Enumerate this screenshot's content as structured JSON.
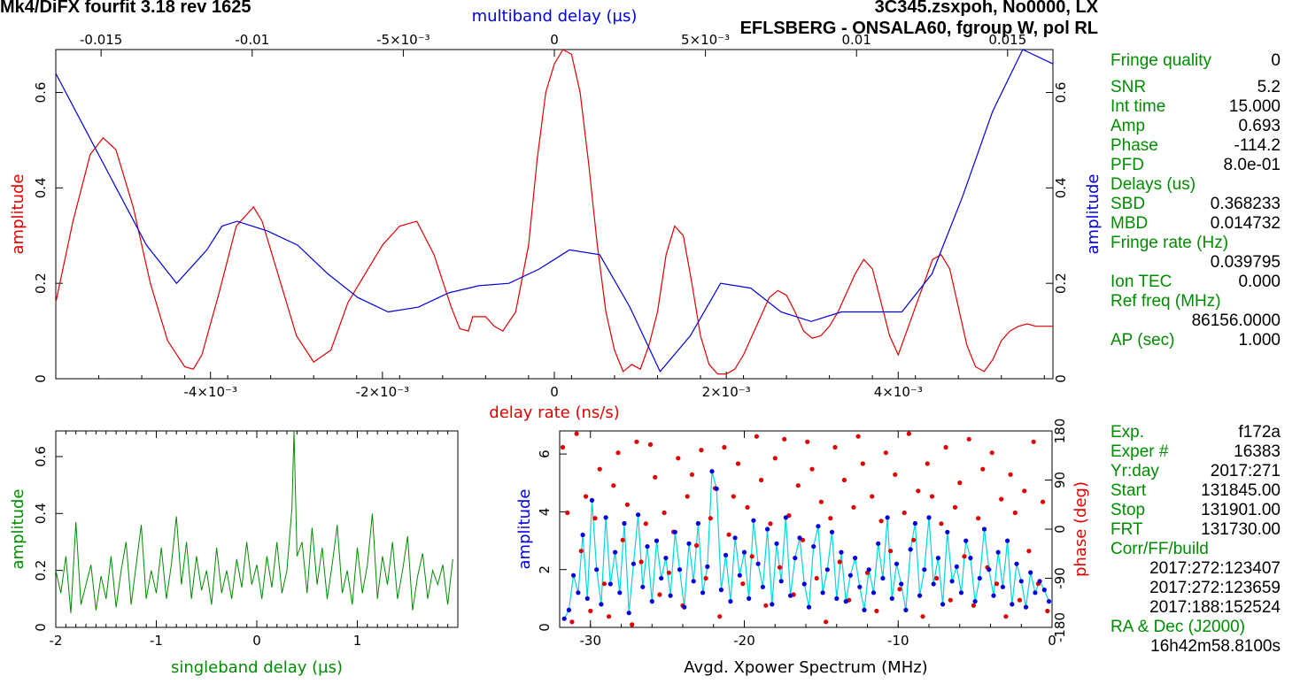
{
  "header": {
    "left_title": "Mk4/DiFX fourfit 3.18 rev 1625",
    "right_title": "3C345.zsxpoh, No0000, LX",
    "baseline": "EFLSBERG - ONSALA60, fgroup W, pol RL"
  },
  "colors": {
    "red": "#e00000",
    "blue": "#0000dd",
    "green": "#008c00",
    "cyan": "#00d8e0"
  },
  "side_panel": {
    "fringe_quality_label": "Fringe quality",
    "fringe_quality_value": "0",
    "snr_label": "SNR",
    "snr_value": "5.2",
    "int_time_label": "Int time",
    "int_time_value": "15.000",
    "amp_label": "Amp",
    "amp_value": "0.693",
    "phase_label": "Phase",
    "phase_value": "-114.2",
    "pfd_label": "PFD",
    "pfd_value": "8.0e-01",
    "delays_label": "Delays (us)",
    "sbd_label": "SBD",
    "sbd_value": "0.368233",
    "mbd_label": "MBD",
    "mbd_value": "0.014732",
    "fringe_rate_label": "Fringe rate (Hz)",
    "fringe_rate_value": "0.039795",
    "ion_tec_label": "Ion TEC",
    "ion_tec_value": "0.000",
    "ref_freq_label": "Ref freq (MHz)",
    "ref_freq_value": "86156.0000",
    "ap_label": "AP (sec)",
    "ap_value": "1.000",
    "exp_label": "Exp.",
    "exp_value": "f172a",
    "exper_label": "Exper #",
    "exper_value": "16383",
    "yrday_label": "Yr:day",
    "yrday_value": "2017:271",
    "start_label": "Start",
    "start_value": "131845.00",
    "stop_label": "Stop",
    "stop_value": "131901.00",
    "frt_label": "FRT",
    "frt_value": "131730.00",
    "corr_label": "Corr/FF/build",
    "corr_time1": "2017:272:123407",
    "corr_time2": "2017:272:123659",
    "corr_time3": "2017:188:152524",
    "radec_label": "RA & Dec (J2000)",
    "ra_value": "16h42m58.8100s"
  },
  "chart_data": [
    {
      "type": "line",
      "title": "",
      "xlabel_bottom": "delay rate (ns/s)",
      "xlabel_top": "multiband delay (µs)",
      "ylabel_left": "amplitude",
      "ylabel_right": "amplitude",
      "xlim_bottom": [
        -0.0058,
        0.0058
      ],
      "xlim_top": [
        -0.0165,
        0.0165
      ],
      "ylim": [
        0,
        0.69
      ],
      "bottom_ticks": [
        "-4×10⁻³",
        "-2×10⁻³",
        "0",
        "2×10⁻³",
        "4×10⁻³"
      ],
      "top_ticks": [
        "-0.015",
        "-0.01",
        "-5×10⁻³",
        "0",
        "5×10⁻³",
        "0.01",
        "0.015"
      ],
      "left_ticks": [
        "0",
        "0.2",
        "0.4",
        "0.6"
      ],
      "right_ticks": [
        "0",
        "0.2",
        "0.4",
        "0.6"
      ],
      "series": [
        {
          "axis": "delay rate (ns/s)",
          "color": "#e00000",
          "x": [
            -0.0058,
            -0.0056,
            -0.0054,
            -0.00525,
            -0.0051,
            -0.0049,
            -0.0047,
            -0.0045,
            -0.0043,
            -0.0042,
            -0.0041,
            -0.0039,
            -0.0037,
            -0.0035,
            -0.0034,
            -0.0032,
            -0.003,
            -0.0028,
            -0.0026,
            -0.0025,
            -0.0024,
            -0.0022,
            -0.002,
            -0.0018,
            -0.0016,
            -0.0014,
            -0.0012,
            -0.0011,
            -0.001,
            -0.00095,
            -0.0008,
            -0.0007,
            -0.0006,
            -0.00045,
            -0.0003,
            -0.0002,
            -0.0001,
            0.0,
            0.0001,
            0.0002,
            0.0003,
            0.0004,
            0.0005,
            0.0006,
            0.0007,
            0.0008,
            0.0009,
            0.001,
            0.0011,
            0.0012,
            0.0013,
            0.0014,
            0.0015,
            0.0016,
            0.0017,
            0.0018,
            0.0019,
            0.002,
            0.0021,
            0.0022,
            0.0023,
            0.0024,
            0.0025,
            0.0026,
            0.0027,
            0.0028,
            0.0029,
            0.003,
            0.0031,
            0.0032,
            0.0033,
            0.0034,
            0.0035,
            0.0036,
            0.0037,
            0.0038,
            0.0039,
            0.004,
            0.0041,
            0.0042,
            0.0043,
            0.0044,
            0.0045,
            0.0046,
            0.0047,
            0.0048,
            0.0049,
            0.005,
            0.0051,
            0.0052,
            0.0053,
            0.0054,
            0.0055,
            0.0056,
            0.0057,
            0.0058
          ],
          "y": [
            0.16,
            0.33,
            0.47,
            0.505,
            0.48,
            0.36,
            0.2,
            0.08,
            0.025,
            0.02,
            0.05,
            0.18,
            0.32,
            0.36,
            0.33,
            0.21,
            0.09,
            0.035,
            0.06,
            0.11,
            0.16,
            0.22,
            0.28,
            0.32,
            0.33,
            0.26,
            0.15,
            0.105,
            0.1,
            0.13,
            0.13,
            0.11,
            0.1,
            0.14,
            0.28,
            0.46,
            0.6,
            0.66,
            0.69,
            0.68,
            0.6,
            0.45,
            0.28,
            0.14,
            0.06,
            0.015,
            0.03,
            0.02,
            0.07,
            0.14,
            0.26,
            0.32,
            0.3,
            0.2,
            0.09,
            0.03,
            0.01,
            0.01,
            0.02,
            0.05,
            0.09,
            0.13,
            0.17,
            0.185,
            0.175,
            0.14,
            0.1,
            0.085,
            0.09,
            0.11,
            0.14,
            0.18,
            0.22,
            0.25,
            0.23,
            0.16,
            0.09,
            0.05,
            0.1,
            0.15,
            0.2,
            0.25,
            0.26,
            0.23,
            0.15,
            0.07,
            0.025,
            0.015,
            0.04,
            0.08,
            0.1,
            0.11,
            0.115,
            0.11,
            0.11,
            0.11
          ]
        },
        {
          "axis": "multiband delay (µs)",
          "color": "#0000dd",
          "x": [
            -0.0165,
            -0.0155,
            -0.0145,
            -0.0135,
            -0.0125,
            -0.0115,
            -0.011,
            -0.0105,
            -0.0095,
            -0.0085,
            -0.0075,
            -0.0065,
            -0.0055,
            -0.0045,
            -0.0035,
            -0.0025,
            -0.0015,
            -0.0005,
            0.0005,
            0.0015,
            0.0025,
            0.0035,
            0.0045,
            0.0055,
            0.0065,
            0.0075,
            0.0085,
            0.0095,
            0.0105,
            0.0115,
            0.0125,
            0.0135,
            0.0145,
            0.0155,
            0.0165
          ],
          "y": [
            0.64,
            0.52,
            0.4,
            0.28,
            0.2,
            0.27,
            0.32,
            0.33,
            0.31,
            0.28,
            0.22,
            0.17,
            0.14,
            0.15,
            0.18,
            0.195,
            0.2,
            0.23,
            0.27,
            0.26,
            0.15,
            0.015,
            0.09,
            0.2,
            0.19,
            0.14,
            0.12,
            0.14,
            0.14,
            0.14,
            0.22,
            0.38,
            0.56,
            0.69,
            0.66
          ]
        }
      ]
    },
    {
      "type": "line",
      "title": "",
      "xlabel": "singleband delay (µs)",
      "ylabel": "amplitude",
      "xlim": [
        -2,
        2
      ],
      "ylim": [
        0,
        0.69
      ],
      "x_ticks": [
        "-2",
        "-1",
        "0",
        "1"
      ],
      "y_ticks": [
        "0",
        "0.2",
        "0.4",
        "0.6"
      ],
      "series": [
        {
          "color": "#008c00",
          "x": [
            -2,
            -1.95,
            -1.9,
            -1.85,
            -1.8,
            -1.75,
            -1.7,
            -1.65,
            -1.6,
            -1.55,
            -1.5,
            -1.45,
            -1.4,
            -1.35,
            -1.3,
            -1.25,
            -1.2,
            -1.15,
            -1.1,
            -1.05,
            -1.0,
            -0.95,
            -0.9,
            -0.85,
            -0.8,
            -0.75,
            -0.7,
            -0.65,
            -0.6,
            -0.55,
            -0.5,
            -0.45,
            -0.4,
            -0.35,
            -0.3,
            -0.25,
            -0.2,
            -0.15,
            -0.1,
            -0.05,
            0.0,
            0.05,
            0.1,
            0.15,
            0.2,
            0.25,
            0.3,
            0.35,
            0.37,
            0.4,
            0.45,
            0.5,
            0.55,
            0.6,
            0.65,
            0.7,
            0.75,
            0.8,
            0.85,
            0.9,
            0.95,
            1.0,
            1.05,
            1.1,
            1.15,
            1.2,
            1.25,
            1.3,
            1.35,
            1.4,
            1.45,
            1.5,
            1.55,
            1.6,
            1.65,
            1.7,
            1.75,
            1.8,
            1.85,
            1.9,
            1.95
          ],
          "y": [
            0.2,
            0.12,
            0.25,
            0.05,
            0.37,
            0.08,
            0.15,
            0.22,
            0.06,
            0.18,
            0.1,
            0.25,
            0.07,
            0.2,
            0.3,
            0.08,
            0.22,
            0.36,
            0.1,
            0.2,
            0.12,
            0.28,
            0.1,
            0.22,
            0.39,
            0.15,
            0.3,
            0.1,
            0.25,
            0.13,
            0.2,
            0.08,
            0.28,
            0.12,
            0.2,
            0.1,
            0.24,
            0.14,
            0.3,
            0.15,
            0.22,
            0.1,
            0.25,
            0.14,
            0.3,
            0.12,
            0.2,
            0.42,
            0.69,
            0.25,
            0.3,
            0.12,
            0.35,
            0.15,
            0.28,
            0.1,
            0.22,
            0.36,
            0.12,
            0.2,
            0.08,
            0.28,
            0.12,
            0.22,
            0.4,
            0.1,
            0.25,
            0.15,
            0.3,
            0.1,
            0.2,
            0.32,
            0.06,
            0.18,
            0.26,
            0.1,
            0.2,
            0.15,
            0.22,
            0.08,
            0.24
          ]
        }
      ]
    },
    {
      "type": "scatter",
      "title": "",
      "xlabel": "Avgd. Xpower Spectrum (MHz)",
      "ylabel_left": "amplitude",
      "ylabel_right": "phase (deg)",
      "xlim": [
        -32,
        0
      ],
      "ylim_left": [
        0,
        6.8
      ],
      "ylim_right": [
        -180,
        180
      ],
      "x_ticks": [
        "-30",
        "-20",
        "-10",
        "0"
      ],
      "y_ticks_left": [
        "0",
        "2",
        "4",
        "6"
      ],
      "y_ticks_right": [
        "-180",
        "-90",
        "0",
        "90",
        "180"
      ],
      "series": [
        {
          "name": "amplitude",
          "color": "#0000dd",
          "line_color": "#00d8e0",
          "x": [
            -31.7,
            -31.4,
            -31.1,
            -30.8,
            -30.5,
            -30.2,
            -29.9,
            -29.6,
            -29.3,
            -29.0,
            -28.7,
            -28.4,
            -28.1,
            -27.8,
            -27.5,
            -27.2,
            -26.9,
            -26.6,
            -26.3,
            -26.0,
            -25.7,
            -25.4,
            -25.1,
            -24.8,
            -24.5,
            -24.2,
            -23.9,
            -23.6,
            -23.3,
            -23.0,
            -22.7,
            -22.4,
            -22.1,
            -21.8,
            -21.5,
            -21.2,
            -20.9,
            -20.6,
            -20.3,
            -20.0,
            -19.7,
            -19.4,
            -19.1,
            -18.8,
            -18.5,
            -18.2,
            -17.9,
            -17.6,
            -17.3,
            -17.0,
            -16.7,
            -16.4,
            -16.1,
            -15.8,
            -15.5,
            -15.2,
            -14.9,
            -14.6,
            -14.3,
            -14.0,
            -13.7,
            -13.4,
            -13.1,
            -12.8,
            -12.5,
            -12.2,
            -11.9,
            -11.6,
            -11.3,
            -11.0,
            -10.7,
            -10.4,
            -10.1,
            -9.8,
            -9.5,
            -9.2,
            -8.9,
            -8.6,
            -8.3,
            -8.0,
            -7.7,
            -7.4,
            -7.1,
            -6.8,
            -6.5,
            -6.2,
            -5.9,
            -5.6,
            -5.3,
            -5.0,
            -4.7,
            -4.4,
            -4.1,
            -3.8,
            -3.5,
            -3.2,
            -2.9,
            -2.6,
            -2.3,
            -2.0,
            -1.7,
            -1.4,
            -1.1,
            -0.8,
            -0.5,
            -0.2
          ],
          "y": [
            0.3,
            0.6,
            1.8,
            1.2,
            3.2,
            1.0,
            4.4,
            2.0,
            0.8,
            3.8,
            1.5,
            2.6,
            1.2,
            3.6,
            0.5,
            2.2,
            3.9,
            1.4,
            2.8,
            0.9,
            3.0,
            1.7,
            2.4,
            1.1,
            3.3,
            2.0,
            0.7,
            2.9,
            1.6,
            3.6,
            1.2,
            2.1,
            5.4,
            4.8,
            1.3,
            2.5,
            0.9,
            3.1,
            1.8,
            2.6,
            1.0,
            3.7,
            2.2,
            1.4,
            3.4,
            0.8,
            2.9,
            1.6,
            3.8,
            1.1,
            2.4,
            3.1,
            1.5,
            0.7,
            2.8,
            3.5,
            1.2,
            2.0,
            3.3,
            1.0,
            2.6,
            0.9,
            1.8,
            2.4,
            1.4,
            0.6,
            2.0,
            1.2,
            2.9,
            1.7,
            3.8,
            1.0,
            2.2,
            1.5,
            0.6,
            2.7,
            3.6,
            1.1,
            2.0,
            3.8,
            1.5,
            2.4,
            0.8,
            3.3,
            1.6,
            2.1,
            1.2,
            3.0,
            2.4,
            0.9,
            1.7,
            3.4,
            2.0,
            1.1,
            2.6,
            1.4,
            3.0,
            0.8,
            2.2,
            1.6,
            0.7,
            1.9,
            1.2,
            1.6,
            1.3,
            0.9
          ]
        },
        {
          "name": "phase",
          "color": "#e00000",
          "x": [
            -31.8,
            -31.5,
            -31.2,
            -30.9,
            -30.6,
            -30.3,
            -30.0,
            -29.7,
            -29.4,
            -29.1,
            -28.8,
            -28.5,
            -28.2,
            -27.9,
            -27.6,
            -27.3,
            -27.0,
            -26.7,
            -26.4,
            -26.1,
            -25.8,
            -25.5,
            -25.2,
            -24.9,
            -24.6,
            -24.3,
            -24.0,
            -23.7,
            -23.4,
            -23.1,
            -22.8,
            -22.5,
            -22.2,
            -21.9,
            -21.6,
            -21.3,
            -21.0,
            -20.7,
            -20.4,
            -20.1,
            -19.8,
            -19.5,
            -19.2,
            -18.9,
            -18.6,
            -18.3,
            -18.0,
            -17.7,
            -17.4,
            -17.1,
            -16.8,
            -16.5,
            -16.2,
            -15.9,
            -15.6,
            -15.3,
            -15.0,
            -14.7,
            -14.4,
            -14.1,
            -13.8,
            -13.5,
            -13.2,
            -12.9,
            -12.6,
            -12.3,
            -12.0,
            -11.7,
            -11.4,
            -11.1,
            -10.8,
            -10.5,
            -10.2,
            -9.9,
            -9.6,
            -9.3,
            -9.0,
            -8.7,
            -8.4,
            -8.1,
            -7.8,
            -7.5,
            -7.2,
            -6.9,
            -6.6,
            -6.3,
            -6.0,
            -5.7,
            -5.4,
            -5.1,
            -4.8,
            -4.5,
            -4.2,
            -3.9,
            -3.6,
            -3.3,
            -3.0,
            -2.7,
            -2.4,
            -2.1,
            -1.8,
            -1.5,
            -1.2,
            -0.9,
            -0.6,
            -0.3
          ],
          "y": [
            150,
            30,
            -170,
            175,
            -40,
            60,
            -150,
            20,
            110,
            -100,
            -160,
            80,
            140,
            -20,
            45,
            -175,
            160,
            -60,
            10,
            155,
            95,
            -120,
            30,
            -80,
            -5,
            130,
            -140,
            60,
            100,
            -30,
            145,
            -90,
            20,
            75,
            -160,
            150,
            -10,
            60,
            120,
            -100,
            40,
            -50,
            170,
            90,
            -140,
            10,
            130,
            -70,
            165,
            25,
            -120,
            80,
            -20,
            160,
            110,
            -90,
            50,
            -170,
            20,
            150,
            -60,
            90,
            -130,
            40,
            170,
            120,
            -80,
            60,
            -150,
            15,
            140,
            -40,
            100,
            -110,
            30,
            175,
            -20,
            70,
            -160,
            120,
            60,
            -90,
            10,
            150,
            -130,
            40,
            85,
            -50,
            165,
            -140,
            20,
            110,
            -70,
            140,
            -100,
            55,
            -160,
            100,
            30,
            -130,
            70,
            -40,
            160,
            -100,
            50,
            -150
          ]
        }
      ]
    }
  ]
}
